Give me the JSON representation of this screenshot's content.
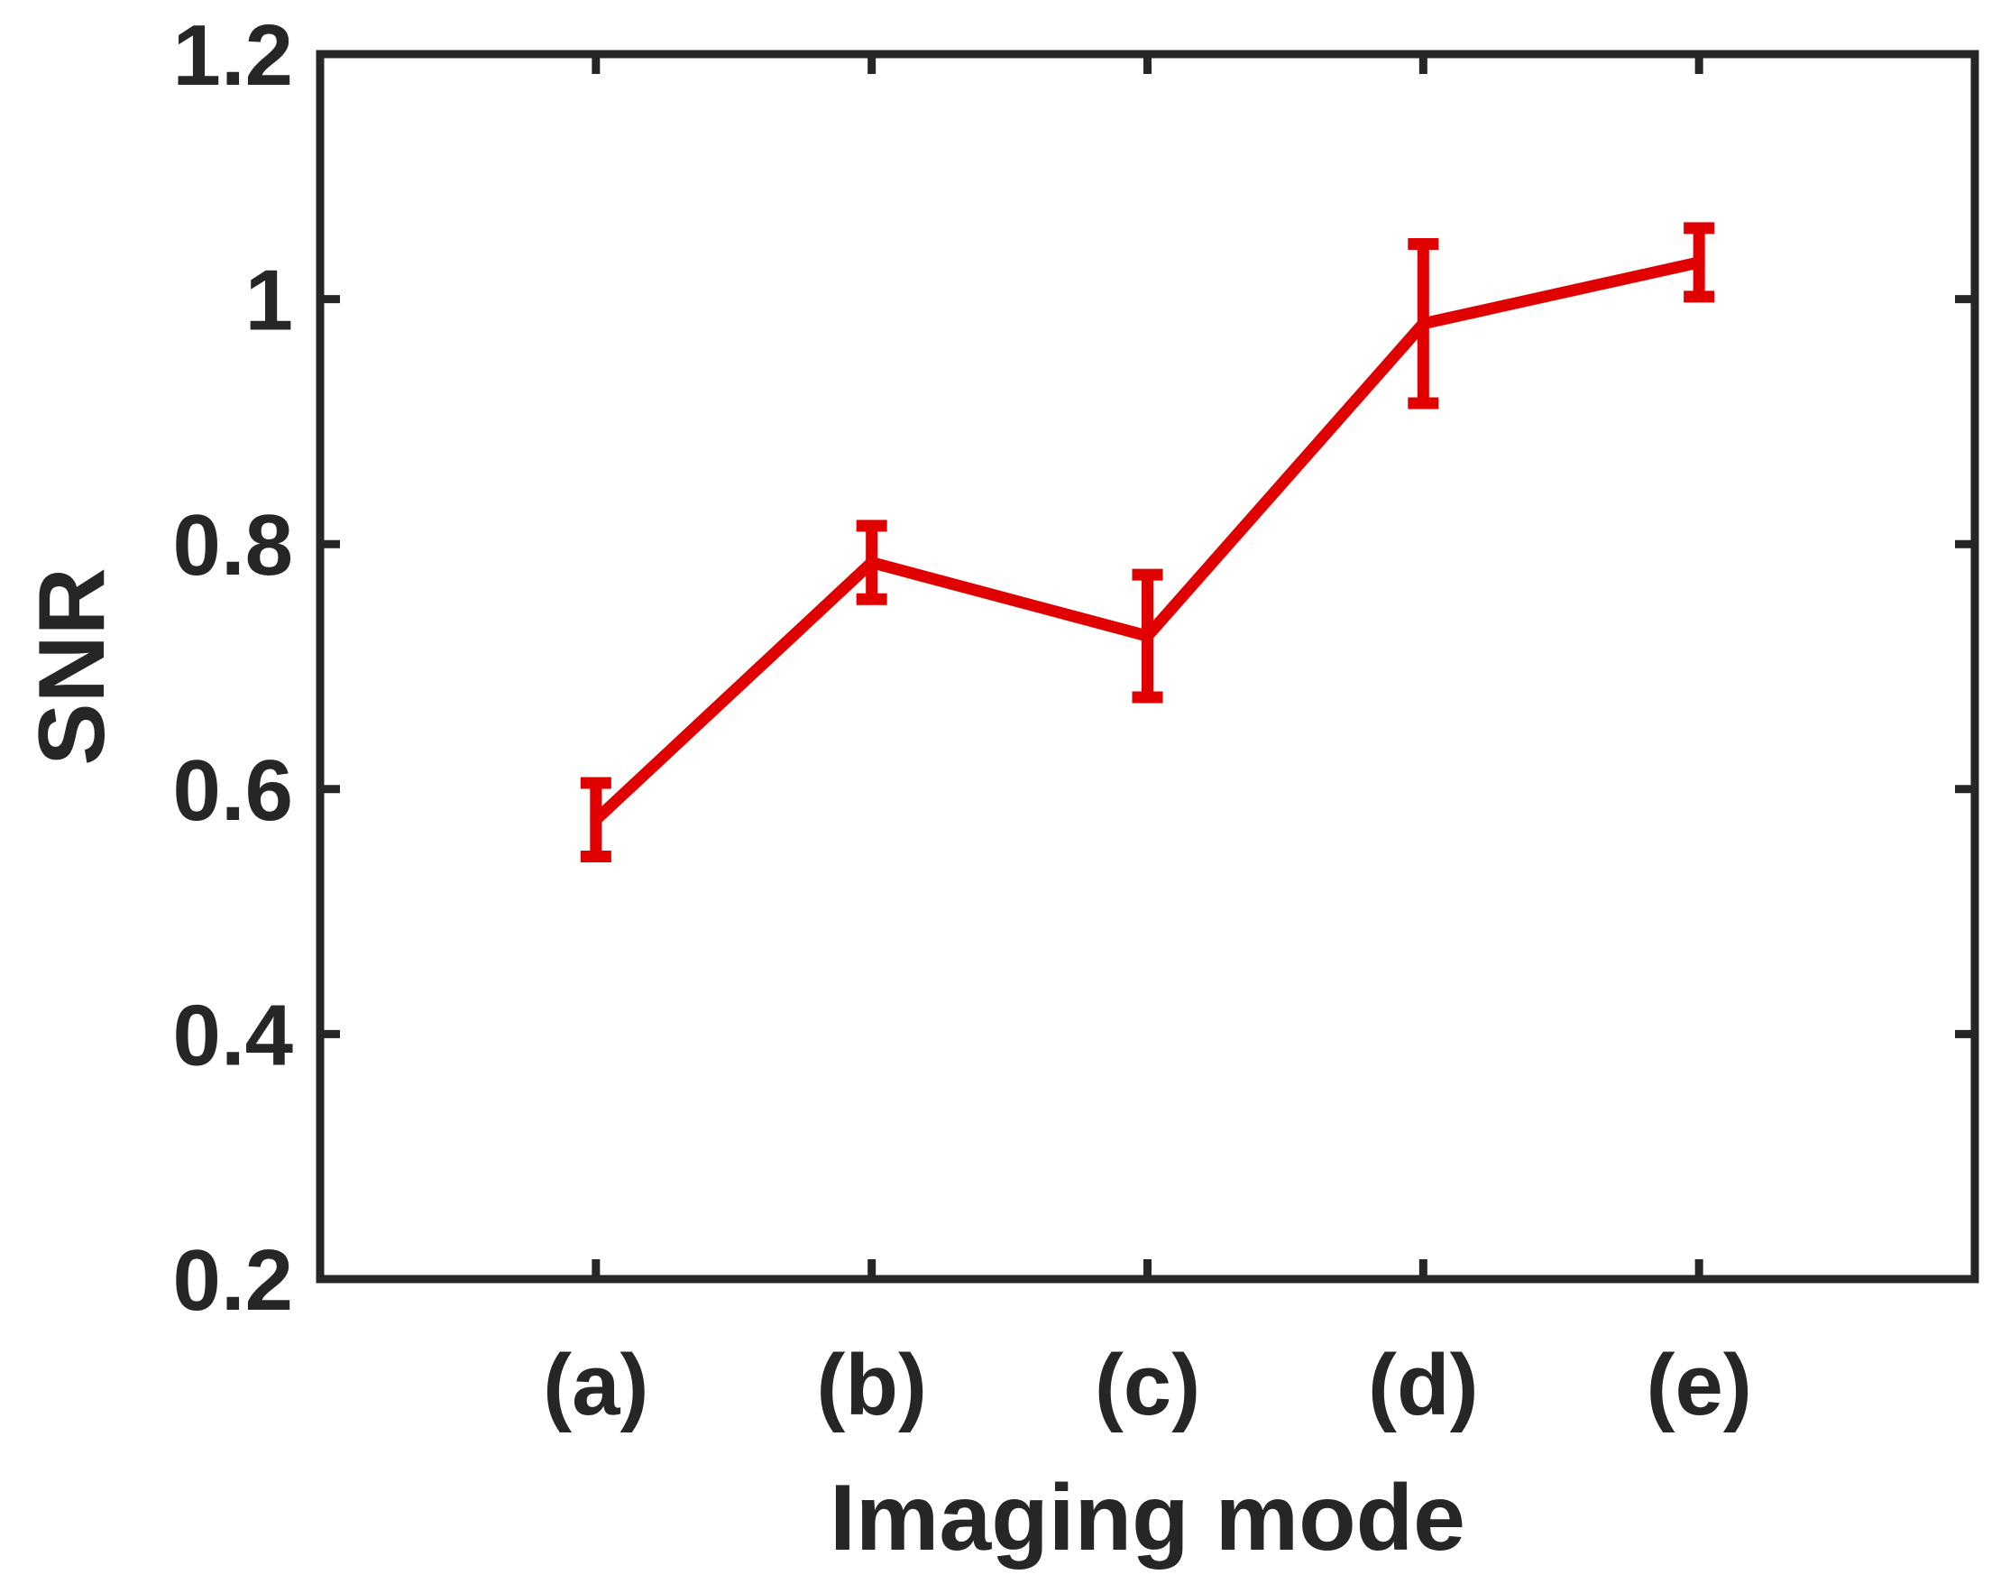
{
  "chart_data": {
    "type": "line",
    "title": "",
    "xlabel": "Imaging mode",
    "ylabel": "SNR",
    "categories": [
      "(a)",
      "(b)",
      "(c)",
      "(d)",
      "(e)"
    ],
    "series": [
      {
        "values": [
          0.575,
          0.785,
          0.725,
          0.98,
          1.03
        ],
        "error": [
          0.03,
          0.03,
          0.05,
          0.065,
          0.028
        ],
        "color": "#e00000"
      }
    ],
    "xlim": [
      0,
      6
    ],
    "ylim": [
      0.2,
      1.2
    ],
    "yticks": [
      0.2,
      0.4,
      0.6,
      0.8,
      1,
      1.2
    ],
    "ytick_labels": [
      "0.2",
      "0.4",
      "0.6",
      "0.8",
      "1",
      "1.2"
    ],
    "grid": false,
    "box": true,
    "axis_color": "#262626"
  }
}
